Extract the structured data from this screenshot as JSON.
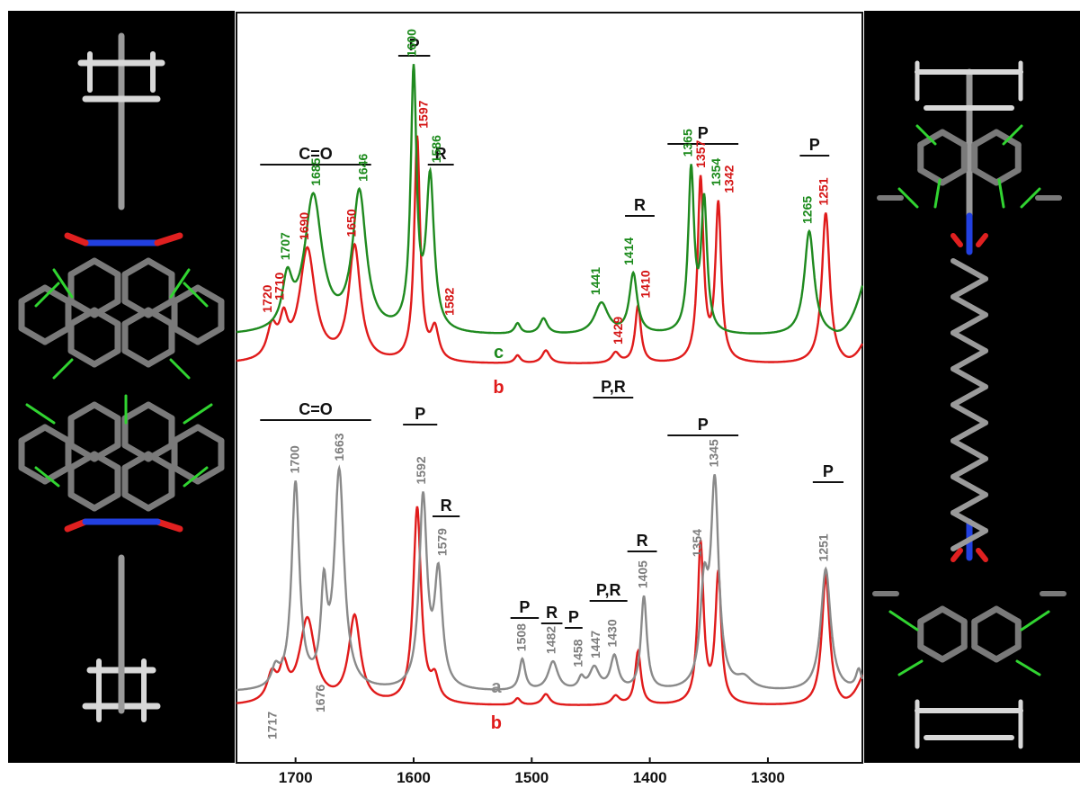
{
  "colors": {
    "trace_a": "#8a8a8a",
    "trace_b": "#e01b1b",
    "trace_c": "#1f8a1f",
    "label_a": "#7d7d7d",
    "label_b": "#d41414",
    "label_c": "#1b8a1b",
    "panel_bg": "#000000",
    "atom_c": "#9a9a9a",
    "atom_h": "#d8d8d8",
    "atom_o": "#e02020",
    "atom_n": "#2240e0",
    "cl_green": "#31d431"
  },
  "chart_data": {
    "type": "line",
    "title": "",
    "xlabel": "",
    "ylabel": "",
    "x_axis": {
      "xlim": [
        1750,
        1220
      ],
      "reversed": true,
      "ticks": [
        1700,
        1600,
        1500,
        1400,
        1300
      ],
      "tick_labels": [
        "1700",
        "1600",
        "1500",
        "1400",
        "1300"
      ]
    },
    "grid": false,
    "panels": [
      {
        "id": "top",
        "series": [
          {
            "name": "c",
            "color_key": "trace_c",
            "label_x": 1528,
            "baseline": 0.06,
            "edge": {
              "start": 1244,
              "k": 5.1,
              "p": 2.2
            },
            "peaks": [
              {
                "x": 1707,
                "h": 0.18,
                "w": 5
              },
              {
                "x": 1685,
                "h": 0.52,
                "w": 9
              },
              {
                "x": 1646,
                "h": 0.53,
                "w": 7
              },
              {
                "x": 1600,
                "h": 0.98,
                "w": 3
              },
              {
                "x": 1586,
                "h": 0.58,
                "w": 4
              },
              {
                "x": 1512,
                "h": 0.04,
                "w": 3
              },
              {
                "x": 1490,
                "h": 0.06,
                "w": 4
              },
              {
                "x": 1441,
                "h": 0.12,
                "w": 7
              },
              {
                "x": 1414,
                "h": 0.23,
                "w": 4
              },
              {
                "x": 1365,
                "h": 0.62,
                "w": 3
              },
              {
                "x": 1354,
                "h": 0.5,
                "w": 3
              },
              {
                "x": 1265,
                "h": 0.4,
                "w": 5
              }
            ]
          },
          {
            "name": "b",
            "color_key": "trace_b",
            "label_x": 1528,
            "baseline": 0.02,
            "edge": {
              "start": 1236,
              "k": 4.6,
              "p": 2.2
            },
            "peaks": [
              {
                "x": 1720,
                "h": 0.12,
                "w": 5
              },
              {
                "x": 1710,
                "h": 0.13,
                "w": 4
              },
              {
                "x": 1690,
                "h": 0.43,
                "w": 8
              },
              {
                "x": 1650,
                "h": 0.44,
                "w": 6
              },
              {
                "x": 1597,
                "h": 0.86,
                "w": 3
              },
              {
                "x": 1582,
                "h": 0.12,
                "w": 4
              },
              {
                "x": 1512,
                "h": 0.03,
                "w": 3
              },
              {
                "x": 1488,
                "h": 0.05,
                "w": 4
              },
              {
                "x": 1429,
                "h": 0.04,
                "w": 4
              },
              {
                "x": 1410,
                "h": 0.22,
                "w": 3
              },
              {
                "x": 1357,
                "h": 0.7,
                "w": 3
              },
              {
                "x": 1342,
                "h": 0.6,
                "w": 3
              },
              {
                "x": 1251,
                "h": 0.58,
                "w": 4
              }
            ]
          }
        ],
        "peak_labels": [
          {
            "text": "1720",
            "x": 1724,
            "color_key": "label_b"
          },
          {
            "text": "1710",
            "x": 1714,
            "color_key": "label_b"
          },
          {
            "text": "1707",
            "x": 1709,
            "color_key": "label_c"
          },
          {
            "text": "1690",
            "x": 1693,
            "color_key": "label_b"
          },
          {
            "text": "1685",
            "x": 1683,
            "color_key": "label_c"
          },
          {
            "text": "1650",
            "x": 1653,
            "color_key": "label_b"
          },
          {
            "text": "1646",
            "x": 1643,
            "color_key": "label_c"
          },
          {
            "text": "1600",
            "x": 1602,
            "color_key": "label_c"
          },
          {
            "text": "1597",
            "x": 1592,
            "color_key": "label_b"
          },
          {
            "text": "1586",
            "x": 1581,
            "color_key": "label_c"
          },
          {
            "text": "1582",
            "x": 1570,
            "color_key": "label_b"
          },
          {
            "text": "1441",
            "x": 1446,
            "color_key": "label_c"
          },
          {
            "text": "1429",
            "x": 1427,
            "color_key": "label_b"
          },
          {
            "text": "1414",
            "x": 1418,
            "color_key": "label_c"
          },
          {
            "text": "1410",
            "x": 1404,
            "color_key": "label_b"
          },
          {
            "text": "1365",
            "x": 1368,
            "color_key": "label_c"
          },
          {
            "text": "1357",
            "x": 1357,
            "color_key": "label_b"
          },
          {
            "text": "1354",
            "x": 1344,
            "color_key": "label_c"
          },
          {
            "text": "1342",
            "x": 1333,
            "color_key": "label_b"
          },
          {
            "text": "1265",
            "x": 1267,
            "color_key": "label_c"
          },
          {
            "text": "1251",
            "x": 1253,
            "color_key": "label_b"
          }
        ],
        "band_labels": [
          {
            "text": "C=O",
            "from": 1730,
            "to": 1636
          },
          {
            "text": "P",
            "from": 1613,
            "to": 1586
          },
          {
            "text": "R",
            "from": 1588,
            "to": 1566
          },
          {
            "text": "R",
            "from": 1421,
            "to": 1396
          },
          {
            "text": "P",
            "from": 1385,
            "to": 1325
          },
          {
            "text": "P",
            "from": 1273,
            "to": 1248
          },
          {
            "text": "P,R",
            "from": 1448,
            "to": 1414
          }
        ]
      },
      {
        "id": "bottom",
        "series": [
          {
            "name": "a",
            "color_key": "trace_a",
            "label_x": 1530,
            "baseline": 0.0,
            "edge": null,
            "peaks": [
              {
                "x": 1717,
                "h": 0.08,
                "w": 4
              },
              {
                "x": 1700,
                "h": 0.92,
                "w": 4
              },
              {
                "x": 1676,
                "h": 0.4,
                "w": 3
              },
              {
                "x": 1663,
                "h": 0.97,
                "w": 5
              },
              {
                "x": 1592,
                "h": 0.85,
                "w": 4
              },
              {
                "x": 1579,
                "h": 0.5,
                "w": 4
              },
              {
                "x": 1508,
                "h": 0.14,
                "w": 3
              },
              {
                "x": 1482,
                "h": 0.13,
                "w": 5
              },
              {
                "x": 1458,
                "h": 0.05,
                "w": 3
              },
              {
                "x": 1447,
                "h": 0.1,
                "w": 5
              },
              {
                "x": 1430,
                "h": 0.15,
                "w": 4
              },
              {
                "x": 1405,
                "h": 0.42,
                "w": 3
              },
              {
                "x": 1354,
                "h": 0.42,
                "w": 4
              },
              {
                "x": 1345,
                "h": 0.9,
                "w": 4
              },
              {
                "x": 1320,
                "h": 0.05,
                "w": 8
              },
              {
                "x": 1251,
                "h": 0.55,
                "w": 5
              },
              {
                "x": 1223,
                "h": 0.09,
                "w": 3
              }
            ]
          },
          {
            "name": "b",
            "color_key": "trace_b",
            "label_x": 1530,
            "baseline": 0.02,
            "edge": {
              "start": 1238,
              "k": 6.0,
              "p": 2.0
            },
            "peaks": [
              {
                "x": 1720,
                "h": 0.12,
                "w": 5
              },
              {
                "x": 1710,
                "h": 0.14,
                "w": 4
              },
              {
                "x": 1690,
                "h": 0.38,
                "w": 8
              },
              {
                "x": 1650,
                "h": 0.39,
                "w": 6
              },
              {
                "x": 1597,
                "h": 0.88,
                "w": 4
              },
              {
                "x": 1582,
                "h": 0.1,
                "w": 4
              },
              {
                "x": 1512,
                "h": 0.03,
                "w": 3
              },
              {
                "x": 1488,
                "h": 0.05,
                "w": 4
              },
              {
                "x": 1429,
                "h": 0.04,
                "w": 4
              },
              {
                "x": 1410,
                "h": 0.24,
                "w": 3
              },
              {
                "x": 1357,
                "h": 0.72,
                "w": 3
              },
              {
                "x": 1342,
                "h": 0.58,
                "w": 3
              },
              {
                "x": 1251,
                "h": 0.58,
                "w": 4
              }
            ]
          }
        ],
        "peak_labels": [
          {
            "text": "1717",
            "x": 1720,
            "color_key": "label_a"
          },
          {
            "text": "1700",
            "x": 1701,
            "color_key": "label_a"
          },
          {
            "text": "1676",
            "x": 1679,
            "color_key": "label_a"
          },
          {
            "text": "1663",
            "x": 1663,
            "color_key": "label_a"
          },
          {
            "text": "1592",
            "x": 1594,
            "color_key": "label_a"
          },
          {
            "text": "1579",
            "x": 1576,
            "color_key": "label_a"
          },
          {
            "text": "1508",
            "x": 1509,
            "color_key": "label_a"
          },
          {
            "text": "1482",
            "x": 1484,
            "color_key": "label_a"
          },
          {
            "text": "1458",
            "x": 1461,
            "color_key": "label_a"
          },
          {
            "text": "1447",
            "x": 1446,
            "color_key": "label_a"
          },
          {
            "text": "1430",
            "x": 1432,
            "color_key": "label_a"
          },
          {
            "text": "1405",
            "x": 1406,
            "color_key": "label_a"
          },
          {
            "text": "1354",
            "x": 1360,
            "color_key": "label_a"
          },
          {
            "text": "1345",
            "x": 1346,
            "color_key": "label_a"
          },
          {
            "text": "1251",
            "x": 1253,
            "color_key": "label_a"
          }
        ],
        "band_labels": [
          {
            "text": "C=O",
            "from": 1730,
            "to": 1636
          },
          {
            "text": "P",
            "from": 1609,
            "to": 1580
          },
          {
            "text": "R",
            "from": 1584,
            "to": 1561
          },
          {
            "text": "P",
            "from": 1518,
            "to": 1494
          },
          {
            "text": "R",
            "from": 1492,
            "to": 1474
          },
          {
            "text": "P",
            "from": 1472,
            "to": 1457
          },
          {
            "text": "P,R",
            "from": 1451,
            "to": 1419
          },
          {
            "text": "R",
            "from": 1419,
            "to": 1394
          },
          {
            "text": "P",
            "from": 1385,
            "to": 1325
          },
          {
            "text": "P",
            "from": 1262,
            "to": 1236
          }
        ]
      }
    ]
  }
}
